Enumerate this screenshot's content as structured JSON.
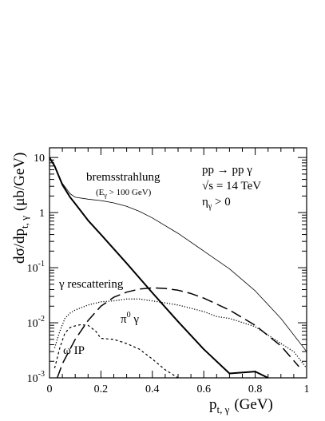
{
  "chart_data": {
    "type": "line",
    "xlabel": "p",
    "xlabel_sub": "t, γ",
    "xlabel_unit": "(GeV)",
    "ylabel": "dσ/dp",
    "ylabel_sub": "t, γ",
    "ylabel_unit": "(μb/GeV)",
    "xlim": [
      0,
      1
    ],
    "ylim": [
      0.001,
      15
    ],
    "yscale": "log",
    "grid": false,
    "x_ticks": [
      {
        "v": 0,
        "label": "0"
      },
      {
        "v": 0.2,
        "label": "0.2"
      },
      {
        "v": 0.4,
        "label": "0.4"
      },
      {
        "v": 0.6,
        "label": "0.6"
      },
      {
        "v": 0.8,
        "label": "0.8"
      },
      {
        "v": 1,
        "label": "1"
      }
    ],
    "y_ticks": [
      {
        "v": 10,
        "base": "10",
        "exp": ""
      },
      {
        "v": 1,
        "base": "1",
        "exp": ""
      },
      {
        "v": 0.1,
        "base": "10",
        "exp": "-1"
      },
      {
        "v": 0.01,
        "base": "10",
        "exp": "-2"
      },
      {
        "v": 0.001,
        "base": "10",
        "exp": "-3"
      }
    ],
    "annotations": {
      "process": "pp → pp γ",
      "energy": "√s = 14 TeV",
      "eta_main": "η",
      "eta_sub": "γ",
      "eta_rest": " > 0",
      "brems": "bremsstrahlung",
      "ecut_open": "(E",
      "ecut_sub": "γ",
      "ecut_rest": " > 100 GeV)",
      "rescatter": "γ rescattering",
      "pi0_base": "π",
      "pi0_sup": "0",
      "pi0_rest": " γ",
      "omega": "ω IP"
    },
    "series": [
      {
        "style": "thick",
        "x": [
          0.0,
          0.02,
          0.05,
          0.08,
          0.1,
          0.15,
          0.2,
          0.3,
          0.4,
          0.5,
          0.6,
          0.7,
          0.8,
          0.85
        ],
        "y": [
          10,
          7,
          3.2,
          1.9,
          1.45,
          0.72,
          0.4,
          0.12,
          0.035,
          0.0105,
          0.0033,
          0.0012,
          0.0013,
          0.001
        ]
      },
      {
        "style": "thin",
        "x": [
          0.0,
          0.02,
          0.05,
          0.08,
          0.1,
          0.15,
          0.2,
          0.25,
          0.3,
          0.35,
          0.4,
          0.5,
          0.6,
          0.7,
          0.8,
          0.9,
          1.0
        ],
        "y": [
          10,
          7,
          3.4,
          2.2,
          1.9,
          1.75,
          1.65,
          1.5,
          1.3,
          1.05,
          0.8,
          0.42,
          0.2,
          0.095,
          0.038,
          0.012,
          0.003
        ]
      },
      {
        "style": "dotted",
        "x": [
          0.02,
          0.04,
          0.06,
          0.08,
          0.1,
          0.15,
          0.2,
          0.25,
          0.3,
          0.35,
          0.4,
          0.5,
          0.6,
          0.65,
          0.7,
          0.8,
          0.9,
          0.95,
          1.0
        ],
        "y": [
          0.0035,
          0.007,
          0.012,
          0.015,
          0.017,
          0.021,
          0.024,
          0.025,
          0.027,
          0.027,
          0.025,
          0.021,
          0.016,
          0.013,
          0.012,
          0.0085,
          0.0042,
          0.003,
          0.0015
        ]
      },
      {
        "style": "dashed",
        "x": [
          0.02,
          0.04,
          0.06,
          0.08,
          0.1,
          0.12,
          0.15,
          0.18,
          0.2,
          0.25,
          0.3,
          0.35,
          0.4,
          0.45,
          0.5
        ],
        "y": [
          0.0015,
          0.0035,
          0.0065,
          0.0082,
          0.0088,
          0.0092,
          0.009,
          0.007,
          0.0052,
          0.005,
          0.0042,
          0.0033,
          0.0022,
          0.0014,
          0.001
        ]
      },
      {
        "style": "longdash",
        "x": [
          0.03,
          0.05,
          0.1,
          0.15,
          0.2,
          0.25,
          0.3,
          0.35,
          0.4,
          0.45,
          0.5,
          0.55,
          0.6,
          0.7,
          0.8,
          0.9,
          0.97
        ],
        "y": [
          0.001,
          0.0018,
          0.005,
          0.011,
          0.02,
          0.029,
          0.036,
          0.041,
          0.043,
          0.042,
          0.039,
          0.034,
          0.028,
          0.017,
          0.009,
          0.0038,
          0.0016
        ]
      }
    ]
  }
}
